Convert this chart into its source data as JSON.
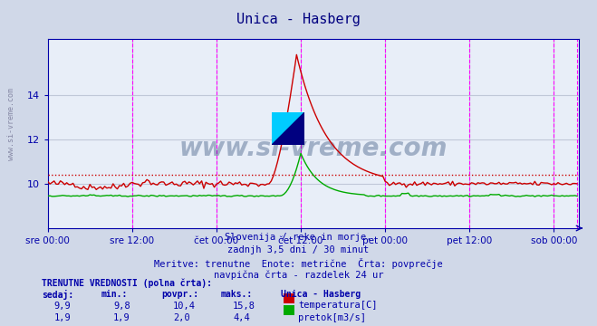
{
  "title": "Unica - Hasberg",
  "title_color": "#000080",
  "bg_color": "#d0d8e8",
  "plot_bg_color": "#e8eef8",
  "grid_color": "#c0c8d8",
  "axis_color": "#0000aa",
  "text_color": "#0000aa",
  "subtitle_lines": [
    "Slovenija / reke in morje.",
    "zadnjh 3,5 dni / 30 minut",
    "Meritve: trenutne  Enote: metrične  Črta: povprečje",
    "navpična črta - razdelek 24 ur"
  ],
  "bottom_label1": "TRENUTNE VREDNOSTI (polna črta):",
  "bottom_headers": [
    "sedaj:",
    "min.:",
    "povpr.:",
    "maks.:",
    "Unica - Hasberg"
  ],
  "bottom_row1": [
    "9,9",
    "9,8",
    "10,4",
    "15,8"
  ],
  "bottom_row2": [
    "1,9",
    "1,9",
    "2,0",
    "4,4"
  ],
  "legend_temp": "temperatura[C]",
  "legend_flow": "pretok[m3/s]",
  "temp_color": "#cc0000",
  "temp_avg_color": "#cc0000",
  "flow_color": "#00aa00",
  "vline_color": "#ff00ff",
  "n_points": 252,
  "ylim_temp": [
    8.0,
    16.5
  ],
  "yticks_temp": [
    10,
    12,
    14
  ],
  "x_tick_labels": [
    "sre 00:00",
    "sre 12:00",
    "čet 00:00",
    "čet 12:00",
    "pet 00:00",
    "pet 12:00",
    "sob 00:00"
  ],
  "temp_avg_value": 10.4,
  "watermark": "www.si-vreme.com"
}
